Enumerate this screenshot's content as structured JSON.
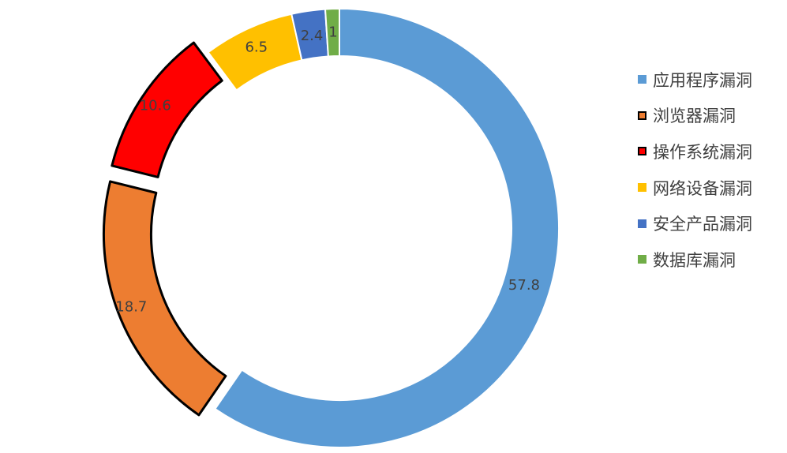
{
  "chart_data": {
    "type": "pie",
    "variant": "donut",
    "legend_position": "right",
    "slices": [
      {
        "label": "应用程序漏洞",
        "value": 57.8,
        "color": "#5B9BD5",
        "exploded": false,
        "outlined": false
      },
      {
        "label": "浏览器漏洞",
        "value": 18.7,
        "color": "#ED7D31",
        "exploded": true,
        "outlined": true
      },
      {
        "label": "操作系统漏洞",
        "value": 10.6,
        "color": "#FF0000",
        "exploded": true,
        "outlined": true
      },
      {
        "label": "网络设备漏洞",
        "value": 6.5,
        "color": "#FFC000",
        "exploded": false,
        "outlined": false
      },
      {
        "label": "安全产品漏洞",
        "value": 2.4,
        "color": "#4472C4",
        "exploded": false,
        "outlined": false
      },
      {
        "label": "数据库漏洞",
        "value": 1,
        "color": "#70AD47",
        "exploded": false,
        "outlined": false
      }
    ],
    "data_labels": [
      "57.8",
      "18.7",
      "10.6",
      "6.5",
      "2.4",
      "1"
    ]
  }
}
